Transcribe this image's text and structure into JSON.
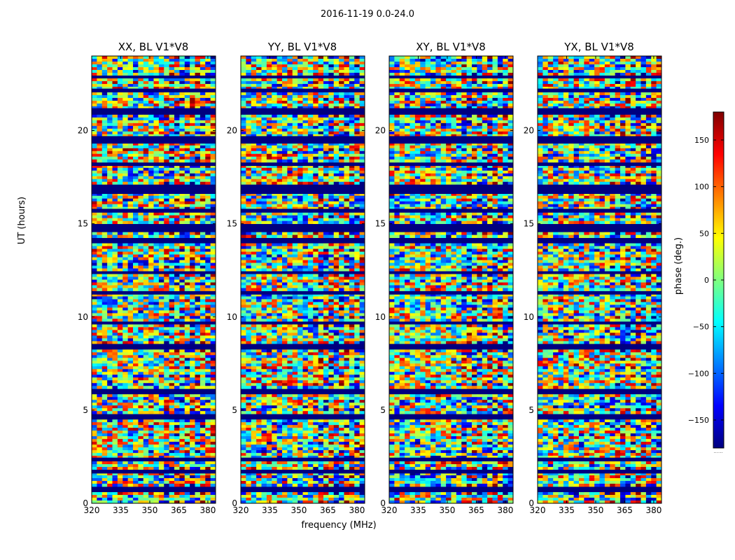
{
  "chart_data": {
    "type": "heatmap",
    "suptitle": "2016-11-19 0.0-24.0",
    "xlabel": "frequency (MHz)",
    "ylabel": "UT (hours)",
    "xlim": [
      320,
      384
    ],
    "ylim": [
      0,
      24
    ],
    "xticks": [
      "320",
      "335",
      "350",
      "365",
      "380"
    ],
    "yticks": [
      "0",
      "5",
      "10",
      "15",
      "20"
    ],
    "xtick_values": [
      320,
      335,
      350,
      365,
      380
    ],
    "ytick_values": [
      0,
      5,
      10,
      15,
      20
    ],
    "colormap": "jet",
    "colorbar": {
      "label": "phase (deg.)",
      "range": [
        -180,
        180
      ],
      "ticks": [
        "150",
        "100",
        "50",
        "0",
        "−50",
        "−100",
        "−150"
      ],
      "tick_values": [
        150,
        100,
        50,
        0,
        -50,
        -100,
        -150
      ],
      "below_text": "......"
    },
    "panels": [
      {
        "title": "XX, BL V1*V8"
      },
      {
        "title": "YY, BL V1*V8"
      },
      {
        "title": "XY, BL V1*V8"
      },
      {
        "title": "YX, BL V1*V8"
      }
    ],
    "flagged_bands_hours": [
      [
        0.6,
        0.85
      ],
      [
        1.6,
        1.8
      ],
      [
        2.3,
        2.45
      ],
      [
        4.5,
        4.75
      ],
      [
        5.9,
        6.1
      ],
      [
        8.3,
        8.55
      ],
      [
        9.6,
        9.75
      ],
      [
        11.2,
        11.35
      ],
      [
        12.3,
        12.45
      ],
      [
        14.0,
        14.2
      ],
      [
        14.6,
        14.95
      ],
      [
        15.6,
        15.8
      ],
      [
        16.6,
        17.1
      ],
      [
        18.1,
        18.25
      ],
      [
        19.3,
        19.7
      ],
      [
        20.9,
        21.2
      ],
      [
        22.1,
        22.25
      ],
      [
        22.8,
        22.95
      ]
    ]
  }
}
